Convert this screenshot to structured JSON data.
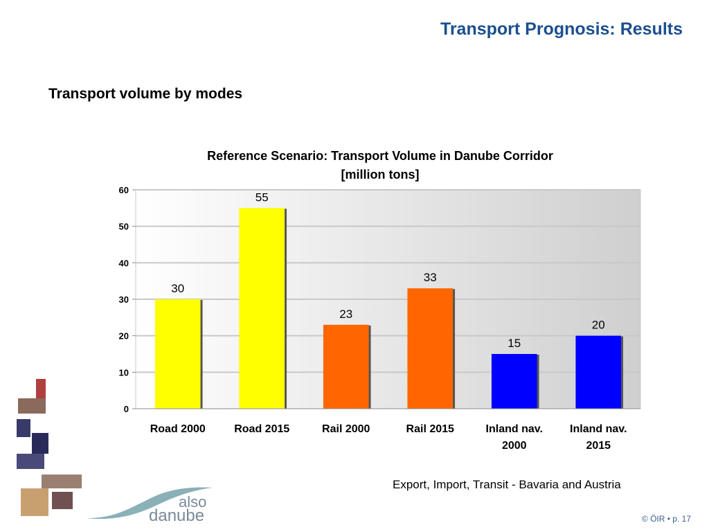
{
  "page": {
    "title": "Transport Prognosis: Results",
    "subtitle": "Transport volume by modes",
    "note": "Export, Import, Transit - Bavaria and Austria",
    "footer": "© ÖIR • p. 17",
    "logo_text_line1": "also",
    "logo_text_line2": "danube"
  },
  "chart_data": {
    "type": "bar",
    "title_lines": [
      "Reference Scenario: Transport Volume in Danube Corridor",
      "[million tons]"
    ],
    "categories": [
      [
        "Road 2000"
      ],
      [
        "Road 2015"
      ],
      [
        "Rail 2000"
      ],
      [
        "Rail 2015"
      ],
      [
        "Inland nav.",
        "2000"
      ],
      [
        "Inland nav.",
        "2015"
      ]
    ],
    "values": [
      30,
      55,
      23,
      33,
      15,
      20
    ],
    "data_labels": [
      "30",
      "55",
      "23",
      "33",
      "15",
      "20"
    ],
    "colors": [
      "#ffff00",
      "#ffff00",
      "#ff6600",
      "#ff6600",
      "#0000ff",
      "#0000ff"
    ],
    "ylim": [
      0,
      60
    ],
    "yticks": [
      0,
      10,
      20,
      30,
      40,
      50,
      60
    ],
    "grid": true,
    "xlabel": "",
    "ylabel": ""
  }
}
